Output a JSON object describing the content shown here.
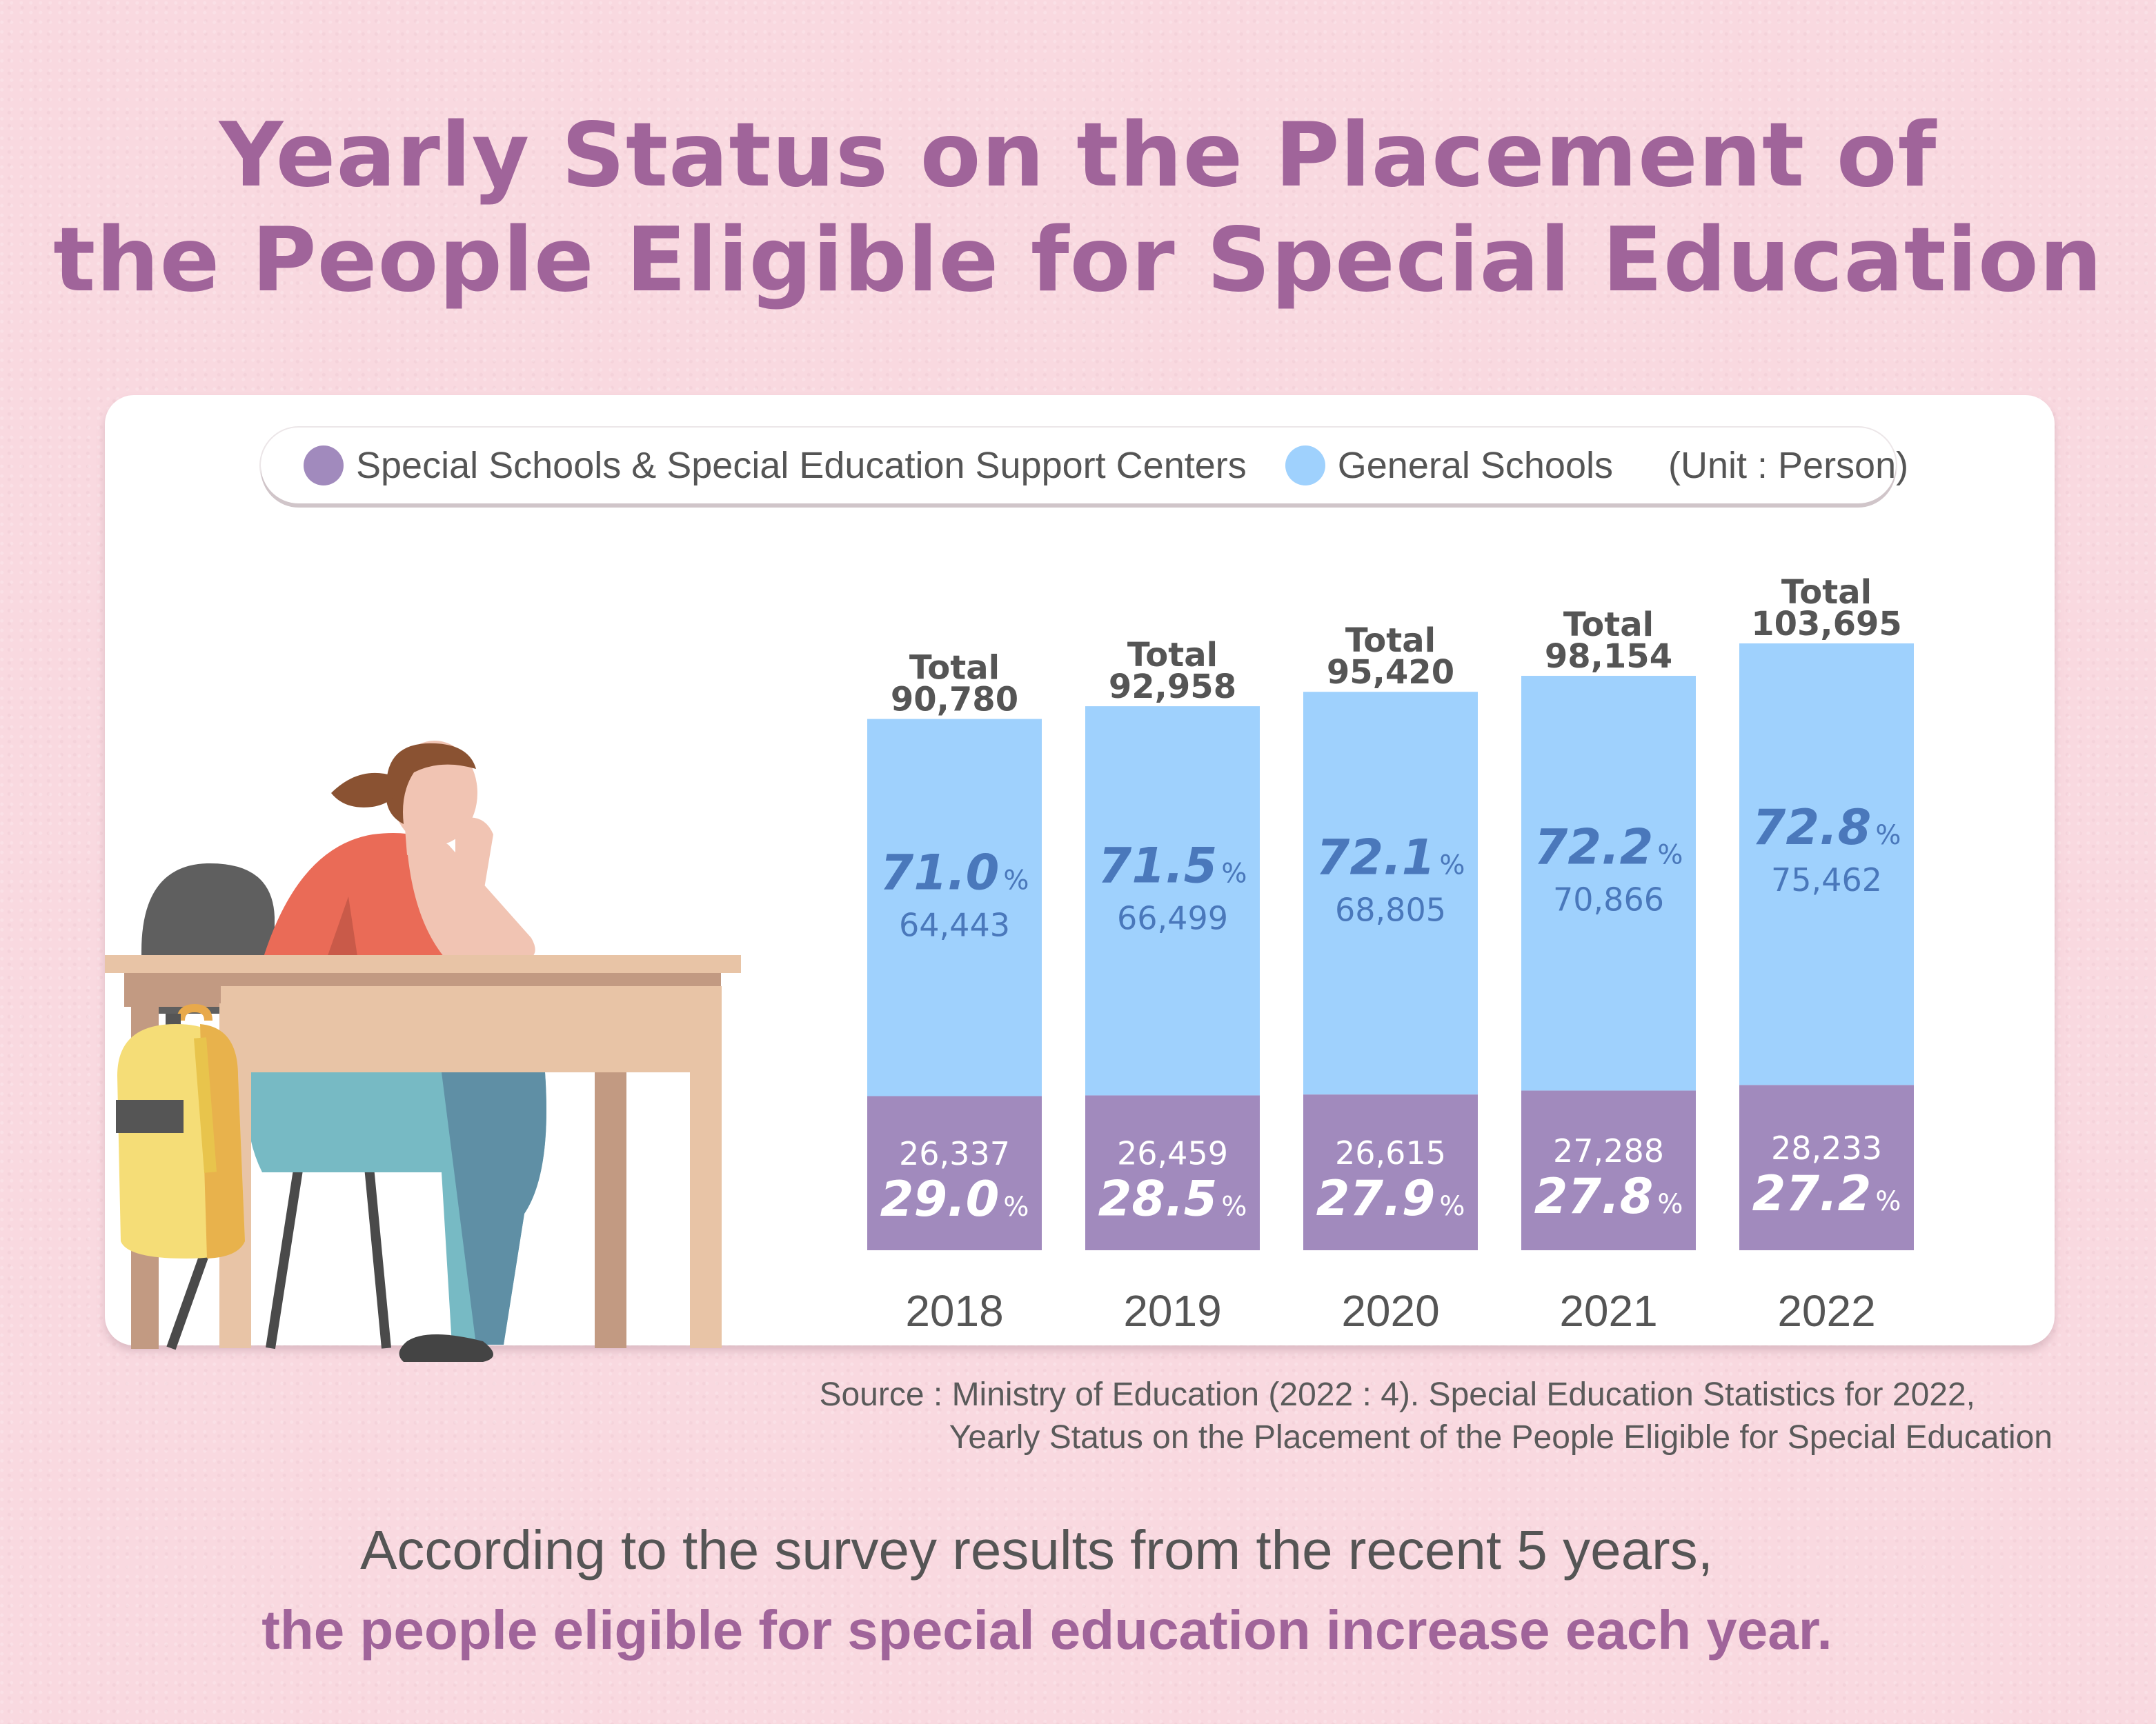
{
  "title": {
    "line1": "Yearly Status on the Placement of",
    "line2": "the People Eligible for Special Education"
  },
  "legend": {
    "special_label": "Special Schools & Special Education Support Centers",
    "general_label": "General Schools",
    "unit": "(Unit : Person)"
  },
  "colors": {
    "special": "#a18abd",
    "general": "#9fd1fd",
    "title": "#a0649a",
    "general_text": "#4a78bb",
    "total_text": "#555555"
  },
  "chart_data": {
    "type": "bar",
    "stacked": true,
    "categories": [
      "2018",
      "2019",
      "2020",
      "2021",
      "2022"
    ],
    "series": [
      {
        "name": "Special Schools & Special Education Support Centers",
        "values": [
          26337,
          26459,
          26615,
          27288,
          28233
        ],
        "value_labels": [
          "26,337",
          "26,459",
          "26,615",
          "27,288",
          "28,233"
        ],
        "percent": [
          "29.0",
          "28.5",
          "27.9",
          "27.8",
          "27.2"
        ]
      },
      {
        "name": "General Schools",
        "values": [
          64443,
          66499,
          68805,
          70866,
          75462
        ],
        "value_labels": [
          "64,443",
          "66,499",
          "68,805",
          "70,866",
          "75,462"
        ],
        "percent": [
          "71.0",
          "71.5",
          "72.1",
          "72.2",
          "72.8"
        ]
      }
    ],
    "totals": [
      90780,
      92958,
      95420,
      98154,
      103695
    ],
    "total_word": "Total",
    "total_labels": [
      "90,780",
      "92,958",
      "95,420",
      "98,154",
      "103,695"
    ],
    "percent_sign": "%",
    "legend_position": "top",
    "grid": false
  },
  "source": {
    "line1": "Source : Ministry of Education (2022 : 4). Special Education Statistics for 2022,",
    "line2": "Yearly Status on the Placement of the People Eligible for Special Education"
  },
  "footer": {
    "line1": "According to the survey results from the recent 5 years,",
    "line2": "the people eligible for special education increase each year."
  }
}
